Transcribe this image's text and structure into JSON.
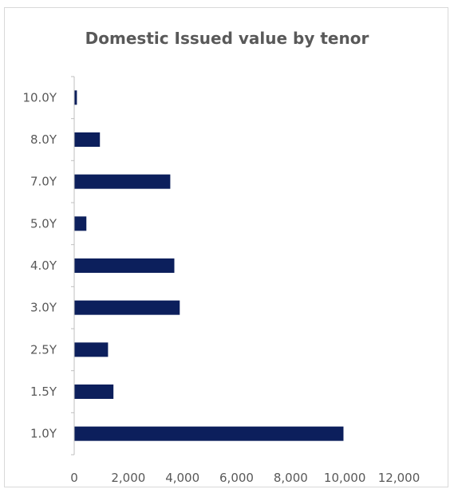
{
  "chart_data": {
    "type": "bar",
    "orientation": "horizontal",
    "title": "Domestic Issued value by tenor",
    "xlabel": "",
    "ylabel": "",
    "categories": [
      "1.0Y",
      "1.5Y",
      "2.5Y",
      "3.0Y",
      "4.0Y",
      "5.0Y",
      "7.0Y",
      "8.0Y",
      "10.0Y"
    ],
    "values": [
      9950,
      1450,
      1250,
      3900,
      3700,
      450,
      3550,
      950,
      100
    ],
    "xlim": [
      0,
      12000
    ],
    "x_ticks": [
      "0",
      "2,000",
      "4,000",
      "6,000",
      "8,000",
      "10,000",
      "12,000"
    ],
    "x_tick_values": [
      0,
      2000,
      4000,
      6000,
      8000,
      10000,
      12000
    ],
    "grid": false,
    "legend": "none",
    "bar_color": "#0c1f5c"
  }
}
